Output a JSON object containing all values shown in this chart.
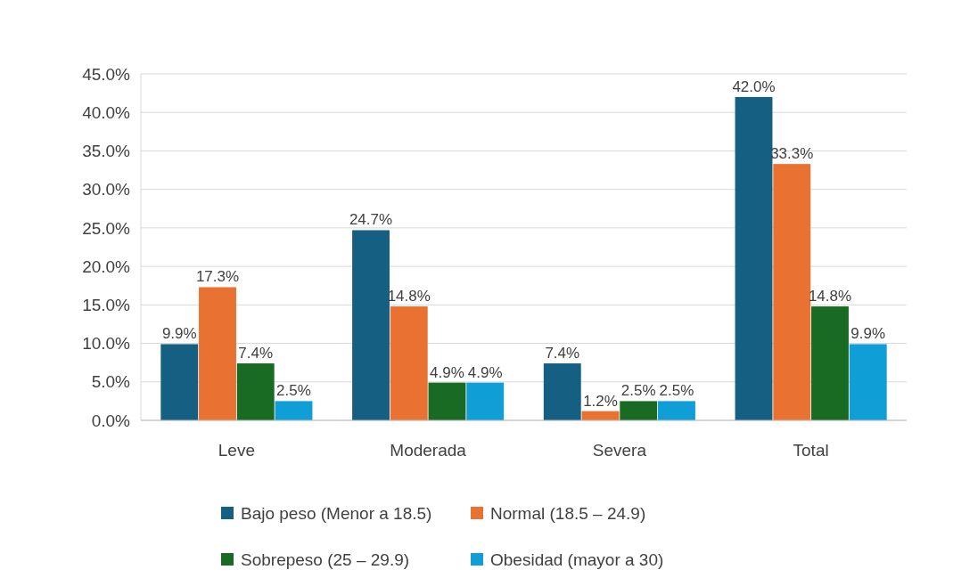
{
  "chart_data": {
    "type": "bar",
    "categories": [
      "Leve",
      "Moderada",
      "Severa",
      "Total"
    ],
    "series": [
      {
        "name": "Bajo peso (Menor a 18.5)",
        "color": "#156082",
        "values": [
          9.9,
          24.7,
          7.4,
          42.0
        ],
        "value_labels": [
          "9.9%",
          "24.7%",
          "7.4%",
          "42.0%"
        ]
      },
      {
        "name": "Normal (18.5 – 24.9)",
        "color": "#e97132",
        "values": [
          17.3,
          14.8,
          1.2,
          33.3
        ],
        "value_labels": [
          "17.3%",
          "14.8%",
          "1.2%",
          "33.3%"
        ]
      },
      {
        "name": "Sobrepeso (25 – 29.9)",
        "color": "#196b24",
        "values": [
          7.4,
          4.9,
          2.5,
          14.8
        ],
        "value_labels": [
          "7.4%",
          "4.9%",
          "2.5%",
          "14.8%"
        ]
      },
      {
        "name": "Obesidad (mayor a 30)",
        "color": "#0f9ed5",
        "values": [
          2.5,
          4.9,
          2.5,
          9.9
        ],
        "value_labels": [
          "2.5%",
          "4.9%",
          "2.5%",
          "9.9%"
        ]
      }
    ],
    "ylim": [
      0,
      45
    ],
    "yticks": [
      {
        "value": 0,
        "label": "0.0%"
      },
      {
        "value": 5,
        "label": "5.0%"
      },
      {
        "value": 10,
        "label": "10.0%"
      },
      {
        "value": 15,
        "label": "15.0%"
      },
      {
        "value": 20,
        "label": "20.0%"
      },
      {
        "value": 25,
        "label": "25.0%"
      },
      {
        "value": 30,
        "label": "30.0%"
      },
      {
        "value": 35,
        "label": "35.0%"
      },
      {
        "value": 40,
        "label": "40.0%"
      },
      {
        "value": 45,
        "label": "45.0%"
      }
    ],
    "grid": "y",
    "legend": "bottom"
  }
}
